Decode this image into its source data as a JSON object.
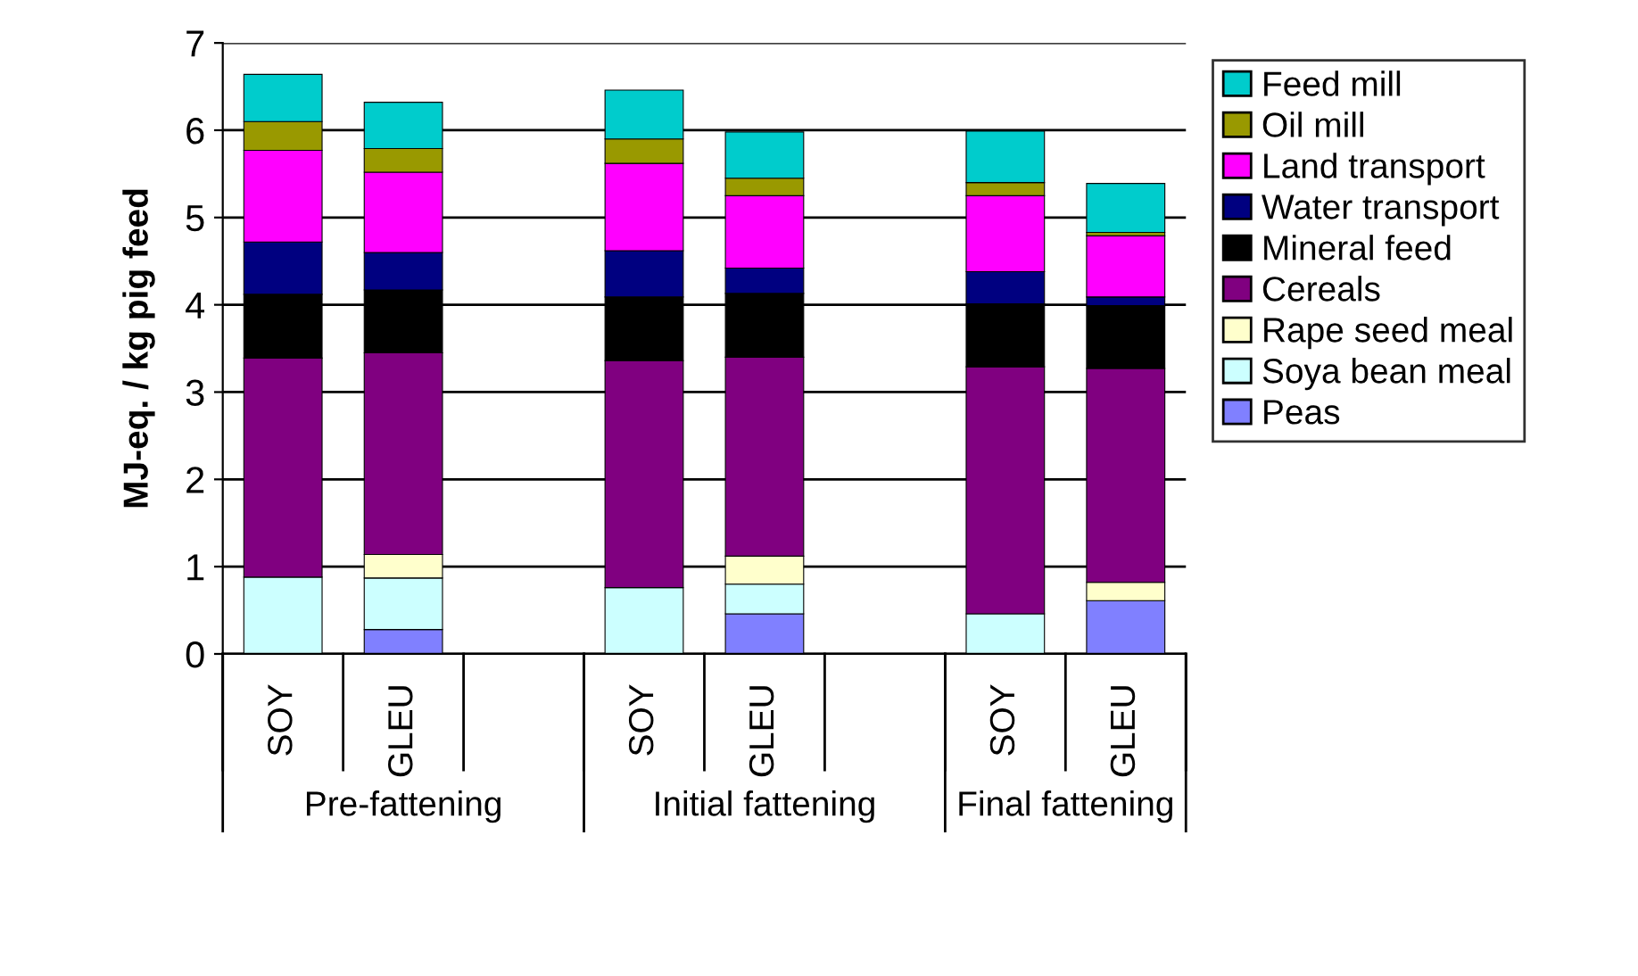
{
  "chart_data": {
    "type": "bar",
    "stacked": true,
    "ylabel": "MJ-eq. / kg pig feed",
    "categories": [
      "SOY",
      "GLEU",
      null,
      "SOY",
      "GLEU",
      null,
      "SOY",
      "GLEU"
    ],
    "series": [
      {
        "name": "Peas",
        "color": "#8080ff",
        "values": [
          0,
          0.28,
          null,
          0,
          0.46,
          null,
          0,
          0.61
        ]
      },
      {
        "name": "Soya bean meal",
        "color": "#ccffff",
        "values": [
          0.88,
          0.59,
          null,
          0.76,
          0.34,
          null,
          0.46,
          0
        ]
      },
      {
        "name": "Rape seed meal",
        "color": "#ffffcc",
        "values": [
          0,
          0.27,
          null,
          0,
          0.32,
          null,
          0,
          0.21
        ]
      },
      {
        "name": "Cereals",
        "color": "#800080",
        "values": [
          2.51,
          2.31,
          null,
          2.6,
          2.28,
          null,
          2.83,
          2.45
        ]
      },
      {
        "name": "Mineral feed",
        "color": "#000000",
        "values": [
          0.73,
          0.72,
          null,
          0.73,
          0.73,
          null,
          0.72,
          0.72
        ]
      },
      {
        "name": "Water transport",
        "color": "#000080",
        "values": [
          0.6,
          0.43,
          null,
          0.53,
          0.29,
          null,
          0.37,
          0.1
        ]
      },
      {
        "name": "Land transport",
        "color": "#ff00ff",
        "values": [
          1.05,
          0.92,
          null,
          1.0,
          0.83,
          null,
          0.87,
          0.7
        ]
      },
      {
        "name": "Oil mill",
        "color": "#999900",
        "values": [
          0.33,
          0.27,
          null,
          0.28,
          0.2,
          null,
          0.15,
          0.04
        ]
      },
      {
        "name": "Feed mill",
        "color": "#00cccc",
        "values": [
          0.54,
          0.53,
          null,
          0.56,
          0.53,
          null,
          0.59,
          0.56
        ]
      }
    ],
    "annotations": [
      "Pre-fattening",
      "Initial fattening",
      "Final fattening"
    ],
    "ylim": [
      0,
      7
    ],
    "yticks": [
      0,
      1,
      2,
      3,
      4,
      5,
      6,
      7
    ],
    "grid": "y",
    "legend": "right"
  }
}
